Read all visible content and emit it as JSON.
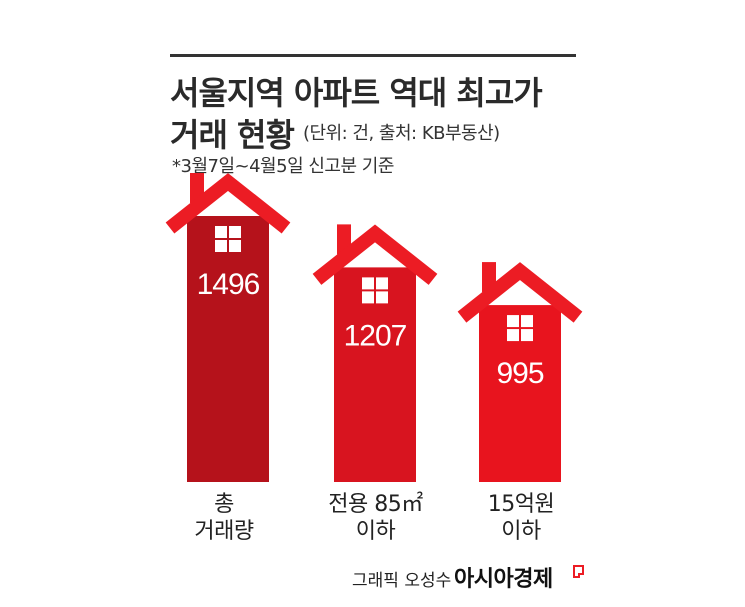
{
  "header": {
    "title_line1": "서울지역 아파트 역대 최고가",
    "title_line2": "거래 현황",
    "unit_source": "(단위: 건, 출처: KB부동산)",
    "note": "*3월7일~4월5일 신고분 기준"
  },
  "chart_data": {
    "type": "bar",
    "categories": [
      "총 거래량",
      "전용 85㎡ 이하",
      "15억원 이하"
    ],
    "category_lines": [
      [
        "총",
        "거래량"
      ],
      [
        "전용 85㎡",
        "이하"
      ],
      [
        "15억원",
        "이하"
      ]
    ],
    "values": [
      1496,
      1207,
      995
    ],
    "value_labels": [
      "1496",
      "1207",
      "995"
    ],
    "colors": [
      "#b5121b",
      "#d8141f",
      "#e8141e"
    ],
    "roof_color": "#ec1c24",
    "window_color": "#ffffff",
    "title": "서울지역 아파트 역대 최고가 거래 현황",
    "xlabel": "",
    "ylabel": ""
  },
  "footer": {
    "credit": "그래픽 오성수",
    "brand": "아시아경제",
    "brand_color": "#ec1c24"
  }
}
